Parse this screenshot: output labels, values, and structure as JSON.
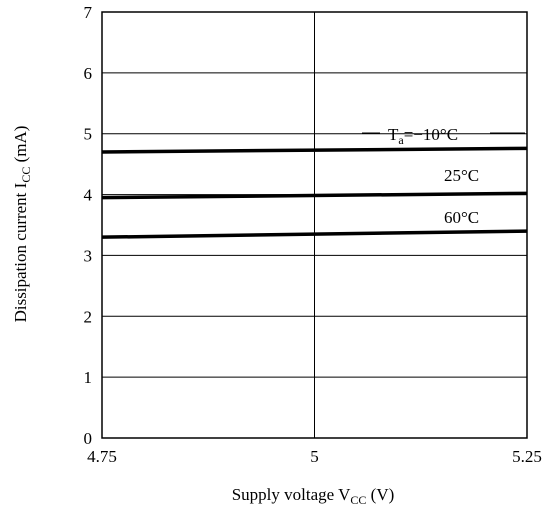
{
  "chart_data": {
    "type": "line",
    "title": "",
    "xlabel": "Supply voltage V",
    "xlabel_sub": "CC",
    "xlabel_unit": " (V)",
    "ylabel": "Dissipation current I",
    "ylabel_sub": "CC",
    "ylabel_unit": " (mA)",
    "xlim": [
      4.75,
      5.25
    ],
    "ylim": [
      0,
      7
    ],
    "x_ticks": [
      4.75,
      5,
      5.25
    ],
    "x_tick_labels": [
      "4.75",
      "5",
      "5.25"
    ],
    "y_ticks": [
      0,
      1,
      2,
      3,
      4,
      5,
      6,
      7
    ],
    "y_tick_labels": [
      "0",
      "1",
      "2",
      "3",
      "4",
      "5",
      "6",
      "7"
    ],
    "grid": true,
    "series": [
      {
        "name": "T",
        "name_sub": "a",
        "name_suffix": "=−10°C",
        "x": [
          4.75,
          5.25
        ],
        "y": [
          4.7,
          4.76
        ]
      },
      {
        "name": "25°C",
        "x": [
          4.75,
          5.25
        ],
        "y": [
          3.95,
          4.02
        ]
      },
      {
        "name": "60°C",
        "x": [
          4.75,
          5.25
        ],
        "y": [
          3.3,
          3.4
        ]
      }
    ]
  }
}
